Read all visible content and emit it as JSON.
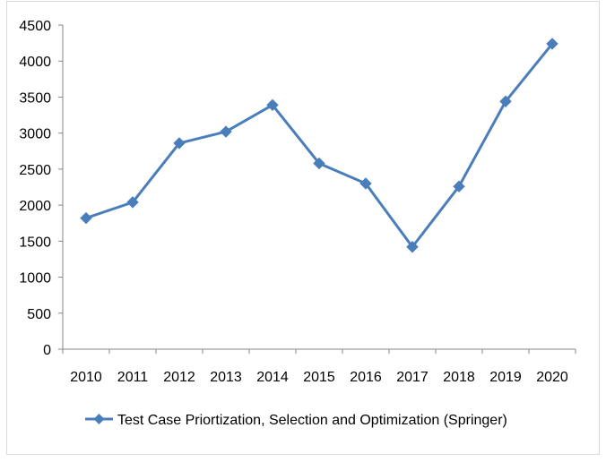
{
  "chart_data": {
    "type": "line",
    "title": "",
    "xlabel": "",
    "ylabel": "",
    "categories": [
      "2010",
      "2011",
      "2012",
      "2013",
      "2014",
      "2015",
      "2016",
      "2017",
      "2018",
      "2019",
      "2020"
    ],
    "series": [
      {
        "name": "Test Case Priortization, Selection and Optimization (Springer)",
        "values": [
          1820,
          2040,
          2860,
          3020,
          3390,
          2580,
          2300,
          1420,
          2260,
          3440,
          4240
        ],
        "color": "#4a7ebb",
        "marker": "diamond"
      }
    ],
    "ylim": [
      0,
      4500
    ],
    "yticks": [
      "0",
      "500",
      "1000",
      "1500",
      "2000",
      "2500",
      "3000",
      "3500",
      "4000",
      "4500"
    ],
    "grid": false,
    "legend": "bottom"
  }
}
